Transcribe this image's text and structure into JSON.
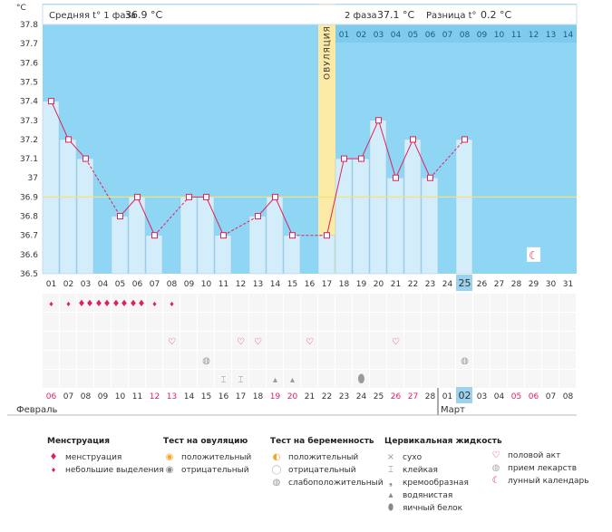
{
  "header": {
    "unit": "°C",
    "phase1_label": "Средняя t° 1 фаза",
    "phase1_value": "36.9 °C",
    "phase2_label": "2 фаза",
    "phase2_value": "37.1 °C",
    "diff_label": "Разница t°",
    "diff_value": "0.2 °C",
    "ovulation_label": "ОВУЛЯЦИЯ"
  },
  "colors": {
    "plot_bg": "#8fd6f4",
    "bar_fill": "#d3eefa",
    "bar_stroke": "#9fc8e0",
    "line": "#e0215a",
    "ovulation_band": "#fbeaa5",
    "coverline": "#f2e27a",
    "highlight_day": "#9bd2ee",
    "red_text": "#e0215a",
    "icon_grey": "#999999"
  },
  "chart_data": {
    "type": "line",
    "y_ticks": [
      "37.8",
      "37.7",
      "37.6",
      "37.5",
      "37.4",
      "37.3",
      "37.2",
      "37.1",
      "37",
      "36.9",
      "36.8",
      "36.7",
      "36.6",
      "36.5"
    ],
    "ylim": [
      36.5,
      37.8
    ],
    "coverline": 36.9,
    "cycle_days": [
      "01",
      "02",
      "03",
      "04",
      "05",
      "06",
      "07",
      "08",
      "09",
      "10",
      "11",
      "12",
      "13",
      "14",
      "15",
      "16",
      "17",
      "18",
      "19",
      "20",
      "21",
      "22",
      "23",
      "24",
      "25",
      "26",
      "27",
      "28",
      "29",
      "30",
      "31"
    ],
    "temperatures": [
      37.4,
      37.2,
      37.1,
      null,
      36.8,
      36.9,
      36.7,
      null,
      36.9,
      36.9,
      36.7,
      null,
      36.8,
      36.9,
      36.7,
      null,
      36.7,
      37.1,
      37.1,
      37.3,
      37.0,
      37.2,
      37.0,
      null,
      37.2,
      null,
      null,
      null,
      null,
      null,
      null
    ],
    "highlighted_cycle_day": "25",
    "ovulation_cycle_day": "17",
    "phase2_day_labels": [
      "01",
      "02",
      "03",
      "04",
      "05",
      "06",
      "07",
      "08",
      "09",
      "10",
      "11",
      "12",
      "13",
      "14"
    ],
    "calendar_dates": [
      "06",
      "07",
      "08",
      "09",
      "10",
      "11",
      "12",
      "13",
      "14",
      "15",
      "16",
      "17",
      "18",
      "19",
      "20",
      "21",
      "22",
      "23",
      "24",
      "25",
      "26",
      "27",
      "28",
      "01",
      "02",
      "03",
      "04",
      "05",
      "06",
      "07",
      "08"
    ],
    "calendar_red": [
      true,
      false,
      false,
      false,
      false,
      false,
      true,
      true,
      false,
      false,
      false,
      false,
      false,
      true,
      true,
      false,
      false,
      false,
      false,
      false,
      true,
      true,
      false,
      false,
      false,
      false,
      false,
      true,
      true,
      false,
      false
    ],
    "highlighted_date_index": 24,
    "months": [
      "Февраль",
      "Март"
    ],
    "march_start_index": 23
  },
  "icon_rows": {
    "menstruation": {
      "icon": "drop-icon",
      "days": [
        1,
        2,
        3,
        4,
        5,
        6,
        7,
        8
      ],
      "levels": [
        1,
        1,
        2,
        2,
        2,
        2,
        1,
        1
      ]
    },
    "intercourse": {
      "icon": "heart-icon",
      "days": [
        8,
        12,
        13,
        16,
        21
      ]
    },
    "lunar": {
      "icon": "moon-icon",
      "days": [
        29
      ]
    },
    "medication": {
      "icon": "pill-icon",
      "days": [
        10,
        25
      ]
    },
    "fluid_sticky": {
      "icon": "sticky-icon",
      "days": [
        11,
        12
      ]
    },
    "fluid_watery": {
      "icon": "watery-icon",
      "days": [
        14,
        15
      ]
    },
    "fluid_eggwhite": {
      "icon": "eggwhite-icon",
      "days": [
        19
      ]
    }
  },
  "legend": {
    "menstruation": {
      "title": "Менструация",
      "items": [
        "менструация",
        "небольшие выделения"
      ]
    },
    "ovulation_test": {
      "title": "Тест на овуляцию",
      "items": [
        "положительный",
        "отрицательный"
      ]
    },
    "pregnancy_test": {
      "title": "Тест на беременность",
      "items": [
        "положительный",
        "отрицательный",
        "слабоположительный"
      ]
    },
    "cervical": {
      "title": "Цервикальная жидкость",
      "items": [
        "сухо",
        "клейкая",
        "кремообразная",
        "водянистая",
        "яичный белок"
      ]
    },
    "other": {
      "items": [
        "половой акт",
        "прием лекарств",
        "лунный календарь"
      ]
    }
  }
}
